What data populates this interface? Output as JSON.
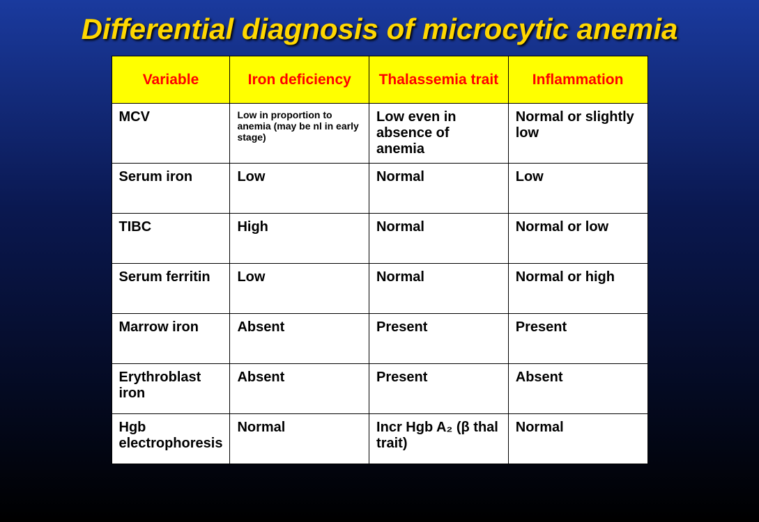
{
  "title": "Differential diagnosis of microcytic anemia",
  "table": {
    "type": "table",
    "header_bg": "#ffff00",
    "header_color": "#ff0000",
    "cell_bg": "#ffffff",
    "cell_color": "#000000",
    "border_color": "#000000",
    "columns": [
      "Variable",
      "Iron deficiency",
      "Thalassemia trait",
      "Inflammation"
    ],
    "rows": [
      {
        "variable": "MCV",
        "iron_deficiency": "Low in proportion to anemia (may be nl in early stage)",
        "thalassemia": "Low even in absence of anemia",
        "inflammation": "Normal or slightly low",
        "small_col2": true
      },
      {
        "variable": "Serum iron",
        "iron_deficiency": "Low",
        "thalassemia": "Normal",
        "inflammation": "Low"
      },
      {
        "variable": "TIBC",
        "iron_deficiency": "High",
        "thalassemia": "Normal",
        "inflammation": "Normal or low"
      },
      {
        "variable": "Serum ferritin",
        "iron_deficiency": "Low",
        "thalassemia": "Normal",
        "inflammation": "Normal or high"
      },
      {
        "variable": "Marrow iron",
        "iron_deficiency": "Absent",
        "thalassemia": "Present",
        "inflammation": "Present"
      },
      {
        "variable": "Erythroblast iron",
        "iron_deficiency": "Absent",
        "thalassemia": "Present",
        "inflammation": "Absent"
      },
      {
        "variable": "Hgb electrophoresis",
        "iron_deficiency": "Normal",
        "thalassemia": "Incr Hgb A₂ (β thal trait)",
        "inflammation": "Normal"
      }
    ]
  },
  "title_color": "#ffd700",
  "background_gradient": [
    "#1a3a9e",
    "#0a1850",
    "#000000"
  ]
}
